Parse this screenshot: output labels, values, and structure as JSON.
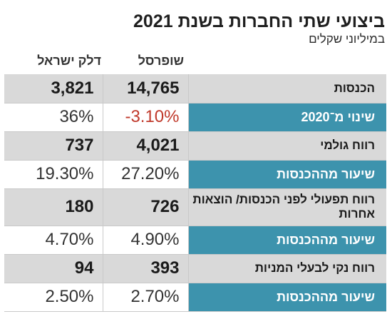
{
  "title": "ביצועי שתי החברות בשנת 2021",
  "subtitle": "במיליוני שקלים",
  "chart_data": {
    "type": "table",
    "columns": [
      "שופרסל",
      "דלק ישראל"
    ],
    "rows": [
      {
        "label": "הכנסות",
        "style": "main",
        "values": [
          "14,765",
          "3,821"
        ]
      },
      {
        "label": "שינוי מ־2020",
        "style": "pct",
        "values": [
          "-3.10%",
          "36%"
        ]
      },
      {
        "label": "רווח גולמי",
        "style": "main",
        "values": [
          "4,021",
          "737"
        ]
      },
      {
        "label": "שיעור מההכנסות",
        "style": "pct",
        "values": [
          "27.20%",
          "19.30%"
        ]
      },
      {
        "label": "רווח תפעולי לפני הכנסות/ הוצאות אחרות",
        "style": "main",
        "values": [
          "726",
          "180"
        ]
      },
      {
        "label": "שיעור מההכנסות",
        "style": "pct",
        "values": [
          "4.90%",
          "4.70%"
        ]
      },
      {
        "label": "רווח נקי לבעלי המניות",
        "style": "main",
        "values": [
          "393",
          "94"
        ]
      },
      {
        "label": "שיעור מההכנסות",
        "style": "pct",
        "values": [
          "2.70%",
          "2.50%"
        ]
      }
    ]
  },
  "colors": {
    "main_row_bg": "#d9d9d9",
    "pct_label_bg": "#3d93ad",
    "negative": "#c0392b"
  }
}
